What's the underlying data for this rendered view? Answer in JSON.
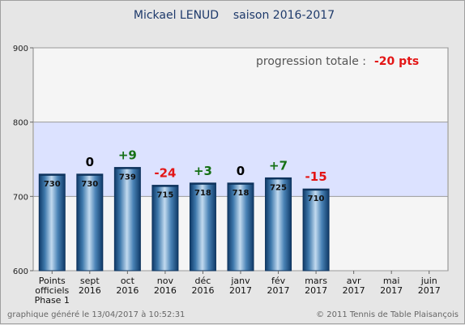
{
  "chart_data": {
    "type": "bar",
    "title": "Mickael LENUD    saison 2016-2017",
    "categories": [
      [
        "Points",
        "officiels",
        "Phase 1"
      ],
      [
        "sept",
        "2016"
      ],
      [
        "oct",
        "2016"
      ],
      [
        "nov",
        "2016"
      ],
      [
        "déc",
        "2016"
      ],
      [
        "janv",
        "2017"
      ],
      [
        "fév",
        "2017"
      ],
      [
        "mars",
        "2017"
      ],
      [
        "avr",
        "2017"
      ],
      [
        "mai",
        "2017"
      ],
      [
        "juin",
        "2017"
      ]
    ],
    "values": [
      730,
      730,
      739,
      715,
      718,
      718,
      725,
      710,
      null,
      null,
      null
    ],
    "deltas": [
      "",
      "0",
      "+9",
      "-24",
      "+3",
      "0",
      "+7",
      "-15",
      "",
      "",
      ""
    ],
    "ylim": [
      600,
      900
    ],
    "yticks": [
      600,
      700,
      800,
      900
    ],
    "highlight_band": [
      700,
      800
    ],
    "grid": true
  },
  "summary": {
    "label": "progression totale :",
    "value": "-20 pts"
  },
  "footer": {
    "left": "graphique généré le 13/04/2017 à 10:52:31",
    "right": "© 2011 Tennis de Table Plaisançois"
  },
  "colors": {
    "positive": "#157015",
    "negative": "#e31515",
    "neutral": "#000000",
    "band": "#dce2ff",
    "plot_bg": "#f5f5f5",
    "bar_dark": "#103c6b",
    "bar_light": "#b5d0ea"
  }
}
